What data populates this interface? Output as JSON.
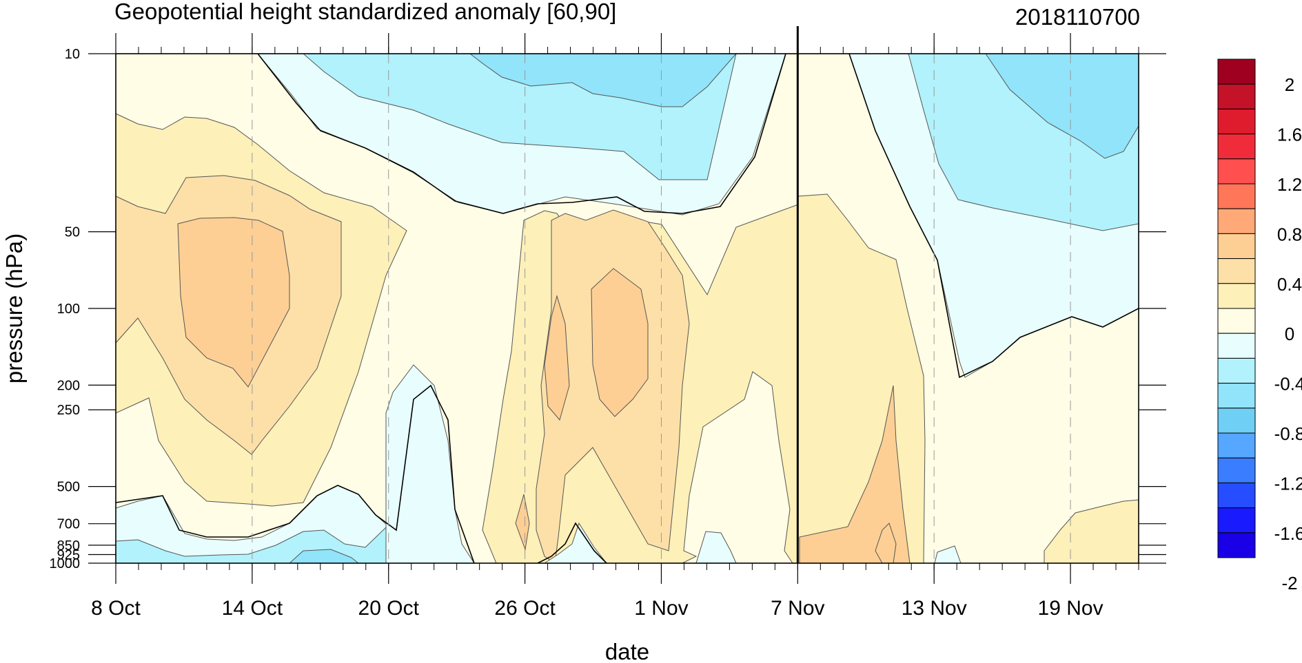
{
  "chart_data": {
    "type": "heatmap",
    "title": "Geopotential height standardized anomaly [60,90]",
    "date_label": "2018110700",
    "xlabel": "date",
    "ylabel": "pressure (hPa)",
    "x_ticks": [
      {
        "label": "8 Oct",
        "day": 0
      },
      {
        "label": "14 Oct",
        "day": 6
      },
      {
        "label": "20 Oct",
        "day": 12
      },
      {
        "label": "26 Oct",
        "day": 18
      },
      {
        "label": "1 Nov",
        "day": 24
      },
      {
        "label": "7 Nov",
        "day": 30
      },
      {
        "label": "13 Nov",
        "day": 36
      },
      {
        "label": "19 Nov",
        "day": 42
      }
    ],
    "x_range_days": [
      0,
      45
    ],
    "current_day_marker": 30,
    "y_levels": [
      10,
      50,
      100,
      200,
      250,
      500,
      700,
      850,
      925,
      1000
    ],
    "y_tick_labels": [
      "10",
      "50",
      "100",
      "200",
      "250",
      "500",
      "700",
      "850",
      "925",
      "1000"
    ],
    "y_scale": "log",
    "y_range": [
      10,
      1000
    ],
    "colorbar": {
      "levels": [
        -2,
        -1.8,
        -1.6,
        -1.4,
        -1.2,
        -1,
        -0.8,
        -0.6,
        -0.4,
        -0.2,
        0,
        0.2,
        0.4,
        0.6,
        0.8,
        1,
        1.2,
        1.4,
        1.6,
        1.8,
        2
      ],
      "labels": [
        "2",
        "1.6",
        "1.2",
        "0.8",
        "0.4",
        "0",
        "-0.4",
        "-0.8",
        "-1.2",
        "-1.6",
        "-2"
      ],
      "colors": [
        "#1a00e6",
        "#1a1aff",
        "#264dff",
        "#3a7dff",
        "#55a7ff",
        "#6fcff5",
        "#91e4fa",
        "#b1f2fc",
        "#e8fdfd",
        "#fffde6",
        "#fdf0b8",
        "#fde0a8",
        "#fdcf94",
        "#ffa878",
        "#ff7658",
        "#ff4f4f",
        "#f02c3a",
        "#de1c2e",
        "#c41229",
        "#a00020"
      ]
    },
    "fill_colors": {
      "neg_06": "#91e4fa",
      "neg_04": "#b1f2fc",
      "neg_02": "#e8fdfd",
      "zero_02": "#fffde6",
      "pos_02": "#fdf0b8",
      "pos_04": "#fde0a8",
      "pos_06": "#fdcf94"
    }
  }
}
